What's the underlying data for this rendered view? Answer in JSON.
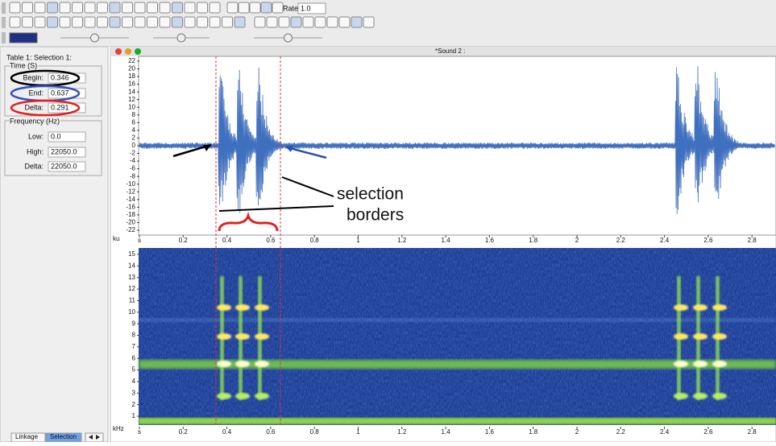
{
  "toolbar": {
    "rate_label": "Rate:",
    "rate_value": "1.0"
  },
  "panel": {
    "title": "Table 1: Selection 1:",
    "time": {
      "legend": "Time (S)",
      "fields": [
        {
          "label": "Begin:",
          "value": "0.346"
        },
        {
          "label": "End:",
          "value": "0.637"
        },
        {
          "label": "Delta:",
          "value": "0.291"
        }
      ]
    },
    "frequency": {
      "legend": "Frequency (Hz)",
      "fields": [
        {
          "label": "Low:",
          "value": "0.0"
        },
        {
          "label": "High:",
          "value": "22050.0"
        },
        {
          "label": "Delta:",
          "value": "22050.0"
        }
      ]
    },
    "tabs": [
      "Linkage",
      "Selection"
    ]
  },
  "window": {
    "title": "*Sound 2 :"
  },
  "waveform": {
    "y_unit": "ku",
    "y_ticks": [
      22,
      20,
      18,
      16,
      14,
      12,
      10,
      8,
      6,
      4,
      2,
      0,
      -2,
      -4,
      -6,
      -8,
      -10,
      -12,
      -14,
      -16,
      -18,
      -20,
      -22
    ],
    "x_ticks": [
      "s",
      "0.2",
      "0.4",
      "0.6",
      "0.8",
      "1",
      "1.2",
      "1.4",
      "1.6",
      "1.8",
      "2",
      "2.2",
      "2.4",
      "2.6",
      "2.8"
    ]
  },
  "spectrogram": {
    "y_unit": "kHz",
    "y_ticks": [
      15,
      14,
      13,
      12,
      11,
      10,
      9,
      8,
      7,
      6,
      5,
      4,
      3,
      2,
      1
    ],
    "x_ticks": [
      "s",
      "0.2",
      "0.4",
      "0.6",
      "0.8",
      "1",
      "1.2",
      "1.4",
      "1.6",
      "1.8",
      "2",
      "2.2",
      "2.4",
      "2.6",
      "2.8"
    ]
  },
  "annotation": {
    "lines": [
      "selection",
      "borders"
    ]
  }
}
